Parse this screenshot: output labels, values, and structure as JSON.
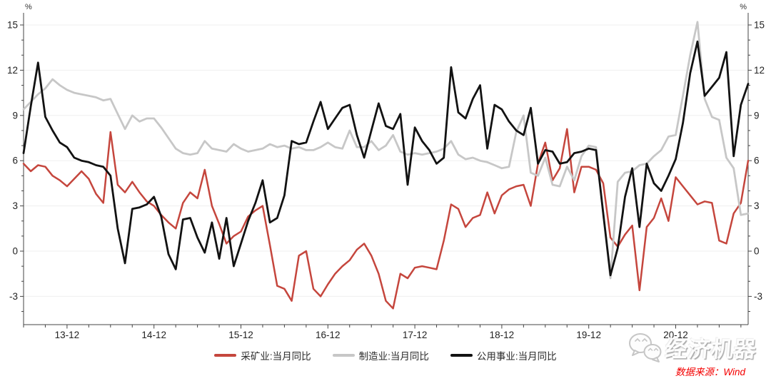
{
  "unit_label": "%",
  "footer": {
    "source_label": "数据来源：Wind"
  },
  "watermark": {
    "text": "经济机器",
    "icon": "wechat-chat-bubbles-icon"
  },
  "chart_data": {
    "type": "line",
    "title": "",
    "xlabel": "",
    "ylabel": "%",
    "grid": "horizontal-major",
    "legend_position": "bottom",
    "ylim": [
      -4.9,
      15.7
    ],
    "yticks_major": [
      -3,
      0,
      3,
      6,
      9,
      12,
      15
    ],
    "ytick_minor_step": 1,
    "ytick_minor_min": -4,
    "ytick_minor_max": 15,
    "x_tick_labels": [
      "13-12",
      "14-12",
      "15-12",
      "16-12",
      "17-12",
      "18-12",
      "19-12",
      "20-12"
    ],
    "months": [
      "2013-06",
      "2013-07",
      "2013-08",
      "2013-09",
      "2013-10",
      "2013-11",
      "2013-12",
      "2014-01",
      "2014-02",
      "2014-03",
      "2014-04",
      "2014-05",
      "2014-06",
      "2014-07",
      "2014-08",
      "2014-09",
      "2014-10",
      "2014-11",
      "2014-12",
      "2015-01",
      "2015-02",
      "2015-03",
      "2015-04",
      "2015-05",
      "2015-06",
      "2015-07",
      "2015-08",
      "2015-09",
      "2015-10",
      "2015-11",
      "2015-12",
      "2016-01",
      "2016-02",
      "2016-03",
      "2016-04",
      "2016-05",
      "2016-06",
      "2016-07",
      "2016-08",
      "2016-09",
      "2016-10",
      "2016-11",
      "2016-12",
      "2017-01",
      "2017-02",
      "2017-03",
      "2017-04",
      "2017-05",
      "2017-06",
      "2017-07",
      "2017-08",
      "2017-09",
      "2017-10",
      "2017-11",
      "2017-12",
      "2018-01",
      "2018-02",
      "2018-03",
      "2018-04",
      "2018-05",
      "2018-06",
      "2018-07",
      "2018-08",
      "2018-09",
      "2018-10",
      "2018-11",
      "2018-12",
      "2019-01",
      "2019-02",
      "2019-03",
      "2019-04",
      "2019-05",
      "2019-06",
      "2019-07",
      "2019-08",
      "2019-09",
      "2019-10",
      "2019-11",
      "2019-12",
      "2020-01",
      "2020-02",
      "2020-03",
      "2020-04",
      "2020-05",
      "2020-06",
      "2020-07",
      "2020-08",
      "2020-09",
      "2020-10",
      "2020-11",
      "2020-12",
      "2021-01",
      "2021-02",
      "2021-03",
      "2021-04",
      "2021-05",
      "2021-06",
      "2021-07",
      "2021-08",
      "2021-09",
      "2021-10"
    ],
    "series": [
      {
        "key": "mining",
        "name": "采矿业:当月同比",
        "color": "#c5463d",
        "width": 2.5,
        "values": [
          5.8,
          5.3,
          5.7,
          5.6,
          5.0,
          4.7,
          4.3,
          4.8,
          5.3,
          4.8,
          3.8,
          3.2,
          7.9,
          4.4,
          3.9,
          4.6,
          3.9,
          3.3,
          3.0,
          2.4,
          1.9,
          1.5,
          3.2,
          3.9,
          3.5,
          5.4,
          3.0,
          1.8,
          0.5,
          1.0,
          1.3,
          2.3,
          2.7,
          3.0,
          0.4,
          -2.3,
          -2.5,
          -3.3,
          -0.3,
          0.0,
          -2.5,
          -3.0,
          -2.2,
          -1.5,
          -1.0,
          -0.6,
          0.1,
          0.5,
          -0.3,
          -1.5,
          -3.3,
          -3.8,
          -1.5,
          -1.8,
          -1.1,
          -1.0,
          -1.1,
          -1.2,
          0.7,
          3.1,
          2.8,
          1.6,
          2.2,
          2.4,
          3.9,
          2.5,
          3.7,
          4.1,
          4.3,
          4.4,
          3.0,
          5.8,
          7.2,
          4.7,
          5.5,
          8.1,
          3.9,
          5.6,
          5.6,
          5.4,
          4.5,
          0.9,
          0.3,
          1.1,
          1.7,
          -2.6,
          1.6,
          2.2,
          3.5,
          2.0,
          4.9,
          4.3,
          3.7,
          3.1,
          3.3,
          3.2,
          0.7,
          0.5,
          2.5,
          3.2,
          6.0
        ]
      },
      {
        "key": "manufacturing",
        "name": "制造业:当月同比",
        "color": "#c7c7c7",
        "width": 2.8,
        "values": [
          9.4,
          9.9,
          10.4,
          10.8,
          11.4,
          11.0,
          10.7,
          10.5,
          10.4,
          10.3,
          10.2,
          10.0,
          10.1,
          9.1,
          8.1,
          9.0,
          8.6,
          8.8,
          8.8,
          8.2,
          7.5,
          6.8,
          6.5,
          6.4,
          6.5,
          7.3,
          6.8,
          6.7,
          6.6,
          7.1,
          6.8,
          6.6,
          6.7,
          6.8,
          7.1,
          6.9,
          7.0,
          6.8,
          6.9,
          6.7,
          6.7,
          6.9,
          7.2,
          6.9,
          6.8,
          8.0,
          6.9,
          6.9,
          7.3,
          6.7,
          7.0,
          7.7,
          6.6,
          6.4,
          6.5,
          6.4,
          6.5,
          6.6,
          6.8,
          7.3,
          6.4,
          6.1,
          6.2,
          6.0,
          5.9,
          5.7,
          5.5,
          5.6,
          7.9,
          9.0,
          5.2,
          5.0,
          6.2,
          4.4,
          4.3,
          5.6,
          4.7,
          6.3,
          7.0,
          6.9,
          2.5,
          -1.8,
          4.6,
          5.2,
          5.3,
          5.7,
          5.8,
          6.3,
          6.7,
          7.6,
          7.7,
          10.3,
          13.0,
          15.2,
          10.1,
          8.9,
          8.7,
          6.2,
          5.5,
          2.4,
          2.5
        ]
      },
      {
        "key": "utilities",
        "name": "公用事业:当月同比",
        "color": "#121212",
        "width": 2.8,
        "values": [
          6.5,
          9.6,
          12.5,
          8.9,
          8.0,
          7.2,
          6.9,
          6.2,
          6.0,
          5.9,
          5.7,
          5.6,
          5.0,
          1.5,
          -0.8,
          2.8,
          2.9,
          3.1,
          3.6,
          2.3,
          -0.2,
          -1.2,
          2.1,
          2.2,
          0.9,
          -0.1,
          1.9,
          -0.5,
          2.2,
          -1.0,
          0.5,
          2.0,
          3.2,
          4.7,
          1.9,
          2.2,
          3.7,
          7.3,
          7.1,
          7.2,
          8.6,
          9.9,
          8.1,
          8.8,
          9.5,
          9.7,
          7.7,
          6.2,
          8.0,
          9.8,
          8.3,
          8.1,
          9.1,
          4.4,
          8.2,
          7.3,
          6.7,
          5.8,
          6.2,
          12.2,
          9.2,
          8.8,
          10.1,
          11.0,
          6.8,
          9.7,
          9.4,
          8.6,
          8.0,
          7.7,
          9.5,
          5.8,
          6.7,
          6.6,
          5.8,
          5.9,
          6.5,
          6.6,
          6.8,
          6.7,
          2.5,
          -1.6,
          0.2,
          3.6,
          5.5,
          1.6,
          5.8,
          4.5,
          4.0,
          5.0,
          6.1,
          8.5,
          11.8,
          13.9,
          10.3,
          10.9,
          11.5,
          13.2,
          6.3,
          9.7,
          11.1
        ]
      }
    ],
    "colors": {
      "grid": "#efefef",
      "axis": "#444444",
      "tick_label": "#222222"
    }
  }
}
